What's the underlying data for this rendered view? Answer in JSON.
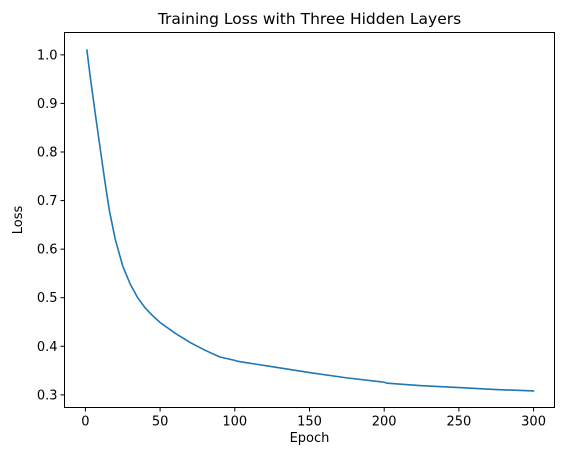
{
  "chart_data": {
    "type": "line",
    "title": "Training Loss with Three Hidden Layers",
    "xlabel": "Epoch",
    "ylabel": "Loss",
    "xlim": [
      -14,
      314
    ],
    "ylim": [
      0.274,
      1.046
    ],
    "xticks": [
      0,
      50,
      100,
      150,
      200,
      250,
      300
    ],
    "xtick_labels": [
      "0",
      "50",
      "100",
      "150",
      "200",
      "250",
      "300"
    ],
    "yticks": [
      0.3,
      0.4,
      0.5,
      0.6,
      0.7,
      0.8,
      0.9,
      1.0
    ],
    "ytick_labels": [
      "0.3",
      "0.4",
      "0.5",
      "0.6",
      "0.7",
      "0.8",
      "0.9",
      "1.0"
    ],
    "grid": false,
    "line_color": "#1f77b4",
    "series": [
      {
        "x": [
          1,
          2,
          3,
          5,
          7,
          10,
          13,
          16,
          20,
          25,
          30,
          35,
          40,
          45,
          50,
          60,
          70,
          80,
          90,
          100,
          102,
          125,
          150,
          175,
          200,
          202,
          225,
          250,
          275,
          300
        ],
        "values": [
          1.01,
          0.985,
          0.96,
          0.915,
          0.87,
          0.805,
          0.74,
          0.68,
          0.62,
          0.565,
          0.528,
          0.5,
          0.479,
          0.463,
          0.449,
          0.427,
          0.408,
          0.392,
          0.378,
          0.371,
          0.369,
          0.358,
          0.346,
          0.335,
          0.326,
          0.324,
          0.319,
          0.315,
          0.311,
          0.308
        ]
      }
    ]
  }
}
